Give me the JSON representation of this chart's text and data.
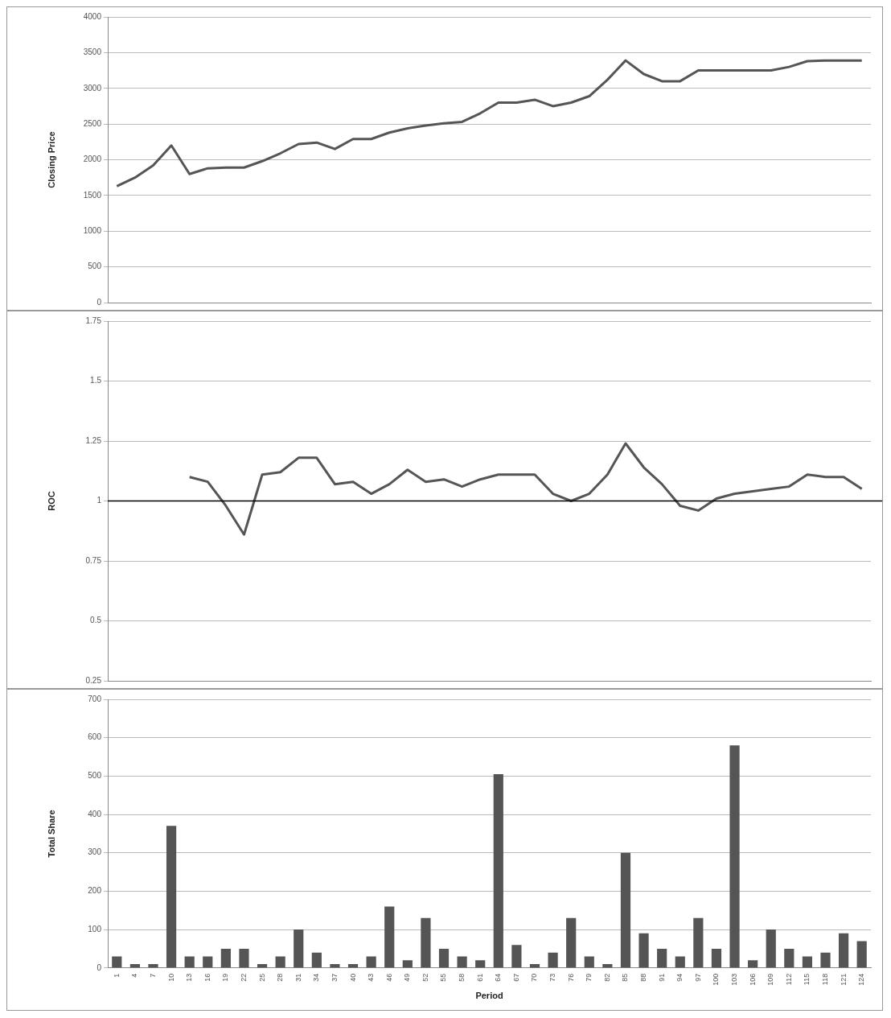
{
  "chart_data": [
    {
      "type": "line",
      "ylabel": "Closing Price",
      "categories": [
        "1",
        "4",
        "7",
        "10",
        "13",
        "16",
        "19",
        "22",
        "25",
        "28",
        "31",
        "34",
        "37",
        "40",
        "43",
        "46",
        "49",
        "52",
        "55",
        "58",
        "61",
        "64",
        "67",
        "70",
        "73",
        "76",
        "79",
        "82",
        "85",
        "88",
        "91",
        "94",
        "97",
        "100",
        "103",
        "106",
        "109",
        "112",
        "115",
        "118",
        "121",
        "124"
      ],
      "series": [
        {
          "color": "#555555",
          "values": [
            1630,
            1750,
            1920,
            2200,
            1800,
            1880,
            1890,
            1890,
            1980,
            2090,
            2220,
            2240,
            2150,
            2290,
            2290,
            2380,
            2440,
            2480,
            2510,
            2530,
            2650,
            2800,
            2800,
            2840,
            2750,
            2800,
            2890,
            3120,
            3390,
            3200,
            3100,
            3100,
            3250,
            3250,
            3250,
            3250,
            3250,
            3300,
            3380,
            3390,
            3390,
            3390
          ]
        }
      ],
      "ylim": [
        0,
        4000
      ],
      "yticks": [
        0,
        500,
        1000,
        1500,
        2000,
        2500,
        3000,
        3500,
        4000
      ],
      "grid": "y",
      "tick_labels": "y",
      "marker": "none"
    },
    {
      "type": "line",
      "ylabel": "ROC",
      "categories": [
        "1",
        "4",
        "7",
        "10",
        "13",
        "16",
        "19",
        "22",
        "25",
        "28",
        "31",
        "34",
        "37",
        "40",
        "43",
        "46",
        "49",
        "52",
        "55",
        "58",
        "61",
        "64",
        "67",
        "70",
        "73",
        "76",
        "79",
        "82",
        "85",
        "88",
        "91",
        "94",
        "97",
        "100",
        "103",
        "106",
        "109",
        "112",
        "115",
        "118",
        "121",
        "124"
      ],
      "series": [
        {
          "color": "#555555",
          "values": [
            null,
            null,
            null,
            null,
            1.1,
            1.08,
            0.98,
            0.86,
            1.11,
            1.12,
            1.18,
            1.18,
            1.07,
            1.08,
            1.03,
            1.07,
            1.13,
            1.08,
            1.09,
            1.06,
            1.09,
            1.11,
            1.11,
            1.11,
            1.03,
            1.0,
            1.03,
            1.11,
            1.24,
            1.14,
            1.07,
            0.98,
            0.96,
            1.01,
            1.03,
            1.04,
            1.05,
            1.06,
            1.11,
            1.1,
            1.1,
            1.05
          ]
        }
      ],
      "ylim": [
        0.25,
        1.75
      ],
      "yticks": [
        0.25,
        0.5,
        0.75,
        1,
        1.25,
        1.5,
        1.75
      ],
      "grid": "y",
      "tick_labels": "y",
      "marker": "none",
      "ref_lines": [
        {
          "axis": "y",
          "value": 1,
          "color": "#000000"
        }
      ]
    },
    {
      "type": "bar",
      "ylabel": "Total Share",
      "xlabel": "Period",
      "categories": [
        "1",
        "4",
        "7",
        "10",
        "13",
        "16",
        "19",
        "22",
        "25",
        "28",
        "31",
        "34",
        "37",
        "40",
        "43",
        "46",
        "49",
        "52",
        "55",
        "58",
        "61",
        "64",
        "67",
        "70",
        "73",
        "76",
        "79",
        "82",
        "85",
        "88",
        "91",
        "94",
        "97",
        "100",
        "103",
        "106",
        "109",
        "112",
        "115",
        "118",
        "121",
        "124"
      ],
      "series": [
        {
          "color": "#555555",
          "values": [
            30,
            10,
            10,
            370,
            30,
            30,
            50,
            50,
            10,
            30,
            100,
            40,
            10,
            10,
            30,
            160,
            20,
            130,
            50,
            30,
            20,
            505,
            60,
            10,
            40,
            130,
            30,
            10,
            300,
            90,
            50,
            30,
            130,
            50,
            580,
            20,
            100,
            50,
            30,
            40,
            90,
            70
          ]
        }
      ],
      "ylim": [
        0,
        700
      ],
      "yticks": [
        0,
        100,
        200,
        300,
        400,
        500,
        600,
        700
      ],
      "grid": "y"
    }
  ]
}
